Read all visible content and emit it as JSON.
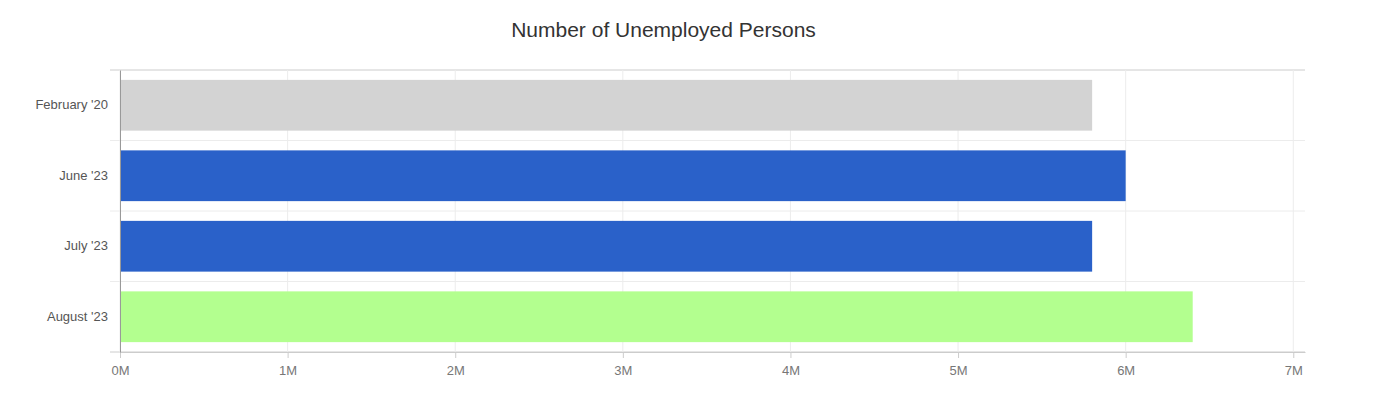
{
  "chart_data": {
    "type": "bar",
    "title": "Number of Unemployed Persons",
    "orientation": "horizontal",
    "categories": [
      "February '20",
      "June '23",
      "July '23",
      "August '23"
    ],
    "values": [
      5800000,
      6000000,
      5800000,
      6400000
    ],
    "colors": [
      "#d3d3d3",
      "#2a61c9",
      "#2a61c9",
      "#b3ff8f"
    ],
    "xlim": [
      0,
      7070000
    ],
    "xticks": [
      {
        "value": 0,
        "label": "0M"
      },
      {
        "value": 1000000,
        "label": "1M"
      },
      {
        "value": 2000000,
        "label": "2M"
      },
      {
        "value": 3000000,
        "label": "3M"
      },
      {
        "value": 4000000,
        "label": "4M"
      },
      {
        "value": 5000000,
        "label": "5M"
      },
      {
        "value": 6000000,
        "label": "6M"
      },
      {
        "value": 7000000,
        "label": "7M"
      }
    ],
    "grid": true
  }
}
